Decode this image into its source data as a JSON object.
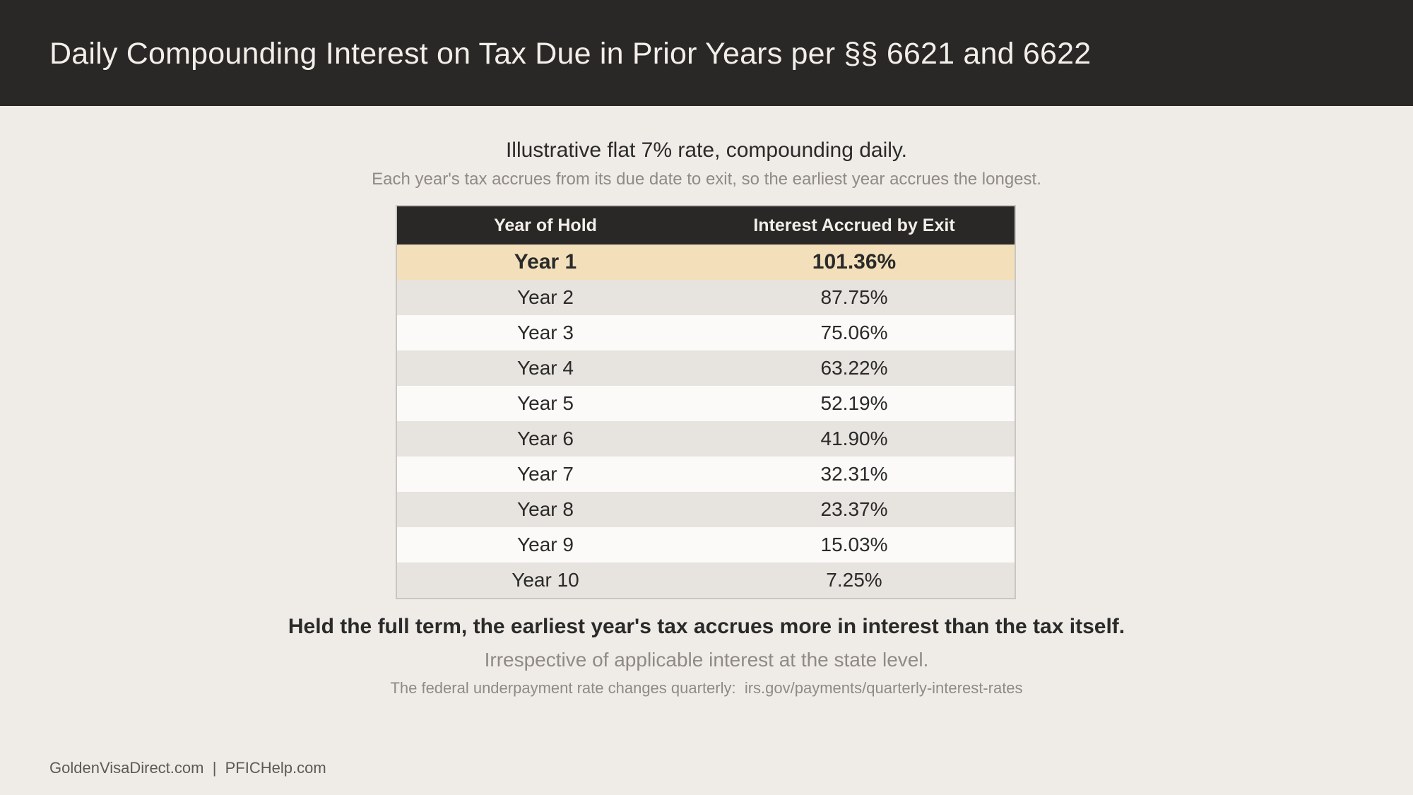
{
  "header": {
    "title": "Daily Compounding Interest on Tax Due in Prior Years per §§ 6621 and 6622"
  },
  "intro": {
    "subtitle": "Illustrative flat 7% rate, compounding daily.",
    "note": "Each year's tax accrues from its due date to exit, so the earliest year accrues the longest."
  },
  "table": {
    "columns": [
      "Year of Hold",
      "Interest Accrued by Exit"
    ],
    "rows": [
      {
        "year": "Year 1",
        "interest": "101.36%"
      },
      {
        "year": "Year 2",
        "interest": "87.75%"
      },
      {
        "year": "Year 3",
        "interest": "75.06%"
      },
      {
        "year": "Year 4",
        "interest": "63.22%"
      },
      {
        "year": "Year 5",
        "interest": "52.19%"
      },
      {
        "year": "Year 6",
        "interest": "41.90%"
      },
      {
        "year": "Year 7",
        "interest": "32.31%"
      },
      {
        "year": "Year 8",
        "interest": "23.37%"
      },
      {
        "year": "Year 9",
        "interest": "15.03%"
      },
      {
        "year": "Year 10",
        "interest": "7.25%"
      }
    ]
  },
  "summary": {
    "key_line": "Held the full term, the earliest year's tax accrues more in interest than the tax itself.",
    "state_line": "Irrespective of applicable interest at the state level.",
    "fed_line": "The federal underpayment rate changes quarterly:  irs.gov/payments/quarterly-interest-rates"
  },
  "footer": {
    "text": "GoldenVisaDirect.com  |  PFICHelp.com"
  },
  "colors": {
    "header_bg": "#292826",
    "page_bg": "#efebe6",
    "highlight_row": "#f3e0bb",
    "stripe_row": "#e7e3de"
  }
}
